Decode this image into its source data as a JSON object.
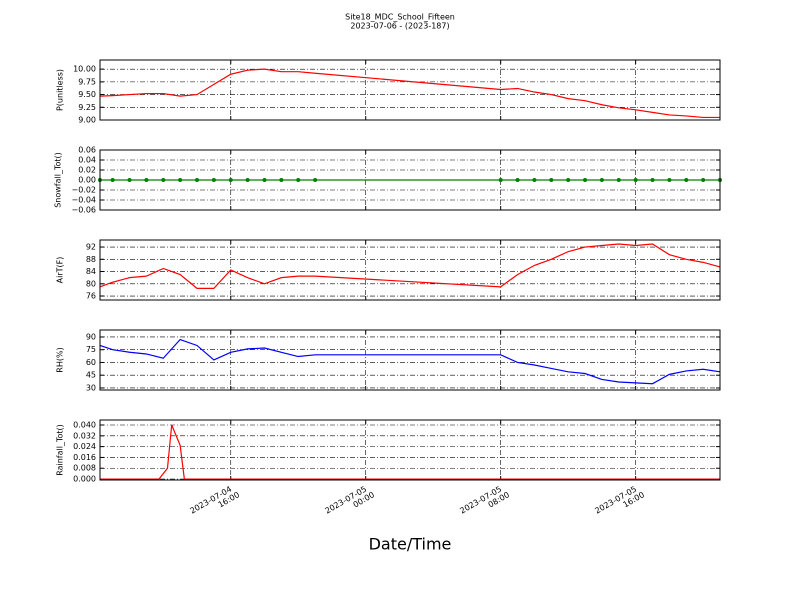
{
  "title": "Site18_MDC_School_Fifteen",
  "subtitle": "2023-07-06 - (2023-187)",
  "xlabel": "Date/Time",
  "chart_data": [
    {
      "type": "line",
      "ylabel": "P(unitless)",
      "grid": true,
      "xlim": [
        "2023-07-04 08:15",
        "2023-07-05 21:00"
      ],
      "xticks": [
        "2023-07-04 16:00",
        "2023-07-05 00:00",
        "2023-07-05 08:00",
        "2023-07-05 16:00"
      ],
      "ylim": [
        9.0,
        10.18
      ],
      "yticks": [
        {
          "value": 9,
          "label": "9.00"
        },
        {
          "value": 9.25,
          "label": "9.25"
        },
        {
          "value": 9.5,
          "label": "9.50"
        },
        {
          "value": 9.75,
          "label": "9.75"
        },
        {
          "value": 10,
          "label": "10.00"
        }
      ],
      "x": [
        "2023-07-04 08:15",
        "2023-07-04 09:00",
        "2023-07-04 10:00",
        "2023-07-04 11:00",
        "2023-07-04 12:00",
        "2023-07-04 13:00",
        "2023-07-04 14:00",
        "2023-07-04 15:00",
        "2023-07-04 16:00",
        "2023-07-04 17:00",
        "2023-07-04 18:00",
        "2023-07-04 19:00",
        "2023-07-04 20:00",
        "2023-07-04 21:00",
        "2023-07-05 08:00",
        "2023-07-05 09:00",
        "2023-07-05 10:00",
        "2023-07-05 11:00",
        "2023-07-05 12:00",
        "2023-07-05 13:00",
        "2023-07-05 14:00",
        "2023-07-05 15:00",
        "2023-07-05 16:00",
        "2023-07-05 17:00",
        "2023-07-05 18:00",
        "2023-07-05 19:00",
        "2023-07-05 20:00",
        "2023-07-05 21:00"
      ],
      "series": [
        {
          "color": "#ff0000",
          "values": [
            9.47,
            9.48,
            9.5,
            9.52,
            9.52,
            9.47,
            9.5,
            9.7,
            9.9,
            9.98,
            10.0,
            9.95,
            9.95,
            9.92,
            9.6,
            9.62,
            9.55,
            9.5,
            9.42,
            9.38,
            9.3,
            9.24,
            9.2,
            9.15,
            9.1,
            9.08,
            9.05,
            9.05
          ]
        }
      ]
    },
    {
      "type": "line",
      "ylabel": "Snowfall_Tot()",
      "grid": true,
      "xlim": [
        "2023-07-04 08:15",
        "2023-07-05 21:00"
      ],
      "xticks": [
        "2023-07-04 16:00",
        "2023-07-05 00:00",
        "2023-07-05 08:00",
        "2023-07-05 16:00"
      ],
      "ylim": [
        -0.06,
        0.06
      ],
      "yticks": [
        {
          "value": -0.06,
          "label": "−0.06"
        },
        {
          "value": -0.04,
          "label": "−0.04"
        },
        {
          "value": -0.02,
          "label": "−0.02"
        },
        {
          "value": 0,
          "label": "0.00"
        },
        {
          "value": 0.02,
          "label": "0.02"
        },
        {
          "value": 0.04,
          "label": "0.04"
        },
        {
          "value": 0.06,
          "label": "0.06"
        }
      ],
      "x": [
        "2023-07-04 08:15",
        "2023-07-04 09:00",
        "2023-07-04 10:00",
        "2023-07-04 11:00",
        "2023-07-04 12:00",
        "2023-07-04 13:00",
        "2023-07-04 14:00",
        "2023-07-04 15:00",
        "2023-07-04 16:00",
        "2023-07-04 17:00",
        "2023-07-04 18:00",
        "2023-07-04 19:00",
        "2023-07-04 20:00",
        "2023-07-04 21:00",
        "2023-07-05 08:00",
        "2023-07-05 09:00",
        "2023-07-05 10:00",
        "2023-07-05 11:00",
        "2023-07-05 12:00",
        "2023-07-05 13:00",
        "2023-07-05 14:00",
        "2023-07-05 15:00",
        "2023-07-05 16:00",
        "2023-07-05 17:00",
        "2023-07-05 18:00",
        "2023-07-05 19:00",
        "2023-07-05 20:00",
        "2023-07-05 21:00"
      ],
      "series": [
        {
          "color": "#008000",
          "marker": true,
          "values": [
            0,
            0,
            0,
            0,
            0,
            0,
            0,
            0,
            0,
            0,
            0,
            0,
            0,
            0,
            0,
            0,
            0,
            0,
            0,
            0,
            0,
            0,
            0,
            0,
            0,
            0,
            0,
            0
          ]
        }
      ]
    },
    {
      "type": "line",
      "ylabel": "AirT(F)",
      "grid": true,
      "xlim": [
        "2023-07-04 08:15",
        "2023-07-05 21:00"
      ],
      "xticks": [
        "2023-07-04 16:00",
        "2023-07-05 00:00",
        "2023-07-05 08:00",
        "2023-07-05 16:00"
      ],
      "ylim": [
        74.7,
        94.3
      ],
      "yticks": [
        76,
        80,
        84,
        88,
        92
      ],
      "x": [
        "2023-07-04 08:15",
        "2023-07-04 09:00",
        "2023-07-04 10:00",
        "2023-07-04 11:00",
        "2023-07-04 12:00",
        "2023-07-04 13:00",
        "2023-07-04 14:00",
        "2023-07-04 15:00",
        "2023-07-04 16:00",
        "2023-07-04 17:00",
        "2023-07-04 18:00",
        "2023-07-04 19:00",
        "2023-07-04 20:00",
        "2023-07-04 21:00",
        "2023-07-05 08:00",
        "2023-07-05 09:00",
        "2023-07-05 10:00",
        "2023-07-05 11:00",
        "2023-07-05 12:00",
        "2023-07-05 13:00",
        "2023-07-05 14:00",
        "2023-07-05 15:00",
        "2023-07-05 16:00",
        "2023-07-05 17:00",
        "2023-07-05 18:00",
        "2023-07-05 19:00",
        "2023-07-05 20:00",
        "2023-07-05 21:00"
      ],
      "series": [
        {
          "color": "#ff0000",
          "values": [
            79,
            80.5,
            82,
            82.5,
            85,
            83,
            78.5,
            78.5,
            84.5,
            82,
            80,
            82,
            82.5,
            82.5,
            79,
            83,
            86,
            88,
            90.5,
            92,
            92.5,
            93,
            92.5,
            93,
            89.5,
            88,
            87,
            85.5
          ]
        }
      ]
    },
    {
      "type": "line",
      "ylabel": "RH(%)",
      "grid": true,
      "xlim": [
        "2023-07-04 08:15",
        "2023-07-05 21:00"
      ],
      "xticks": [
        "2023-07-04 16:00",
        "2023-07-05 00:00",
        "2023-07-05 08:00",
        "2023-07-05 16:00"
      ],
      "ylim": [
        27.6,
        98.2
      ],
      "yticks": [
        30,
        45,
        60,
        75,
        90
      ],
      "x": [
        "2023-07-04 08:15",
        "2023-07-04 09:00",
        "2023-07-04 10:00",
        "2023-07-04 11:00",
        "2023-07-04 12:00",
        "2023-07-04 13:00",
        "2023-07-04 14:00",
        "2023-07-04 15:00",
        "2023-07-04 16:00",
        "2023-07-04 17:00",
        "2023-07-04 18:00",
        "2023-07-04 19:00",
        "2023-07-04 20:00",
        "2023-07-04 21:00",
        "2023-07-05 08:00",
        "2023-07-05 09:00",
        "2023-07-05 10:00",
        "2023-07-05 11:00",
        "2023-07-05 12:00",
        "2023-07-05 13:00",
        "2023-07-05 14:00",
        "2023-07-05 15:00",
        "2023-07-05 16:00",
        "2023-07-05 17:00",
        "2023-07-05 18:00",
        "2023-07-05 19:00",
        "2023-07-05 20:00",
        "2023-07-05 21:00"
      ],
      "series": [
        {
          "color": "#0000ff",
          "values": [
            80,
            75,
            72,
            70,
            65,
            87,
            80,
            63,
            72,
            76,
            77,
            72,
            67,
            69,
            69,
            60,
            57,
            53,
            49,
            47,
            40,
            37,
            36,
            35,
            46,
            50,
            52,
            49
          ]
        }
      ]
    },
    {
      "type": "line",
      "ylabel": "Rainfall_Tot()",
      "grid": true,
      "xlim": [
        "2023-07-04 08:15",
        "2023-07-05 21:00"
      ],
      "xticks": [
        "2023-07-04 16:00",
        "2023-07-05 00:00",
        "2023-07-05 08:00",
        "2023-07-05 16:00"
      ],
      "ylim": [
        -0.0007,
        0.0437
      ],
      "yticks": [
        {
          "value": 0,
          "label": "0.000"
        },
        {
          "value": 0.008,
          "label": "0.008"
        },
        {
          "value": 0.016,
          "label": "0.016"
        },
        {
          "value": 0.024,
          "label": "0.024"
        },
        {
          "value": 0.032,
          "label": "0.032"
        },
        {
          "value": 0.04,
          "label": "0.040"
        }
      ],
      "x": [
        "2023-07-04 08:15",
        "2023-07-04 11:45",
        "2023-07-04 12:15",
        "2023-07-04 12:30",
        "2023-07-04 13:00",
        "2023-07-04 13:15",
        "2023-07-04 21:00",
        "2023-07-05 08:00",
        "2023-07-05 21:00"
      ],
      "series": [
        {
          "color": "#ff0000",
          "values": [
            0,
            0,
            0.008,
            0.04,
            0.025,
            0,
            0,
            0,
            0
          ]
        }
      ]
    }
  ]
}
